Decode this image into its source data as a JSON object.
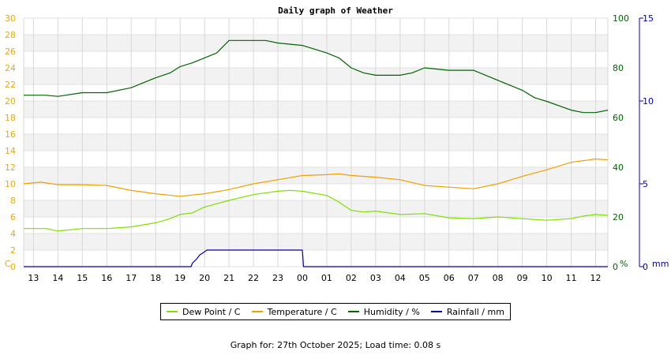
{
  "chart_data": {
    "type": "line",
    "title": "Daily graph of Weather",
    "x_labels": [
      "13",
      "14",
      "15",
      "16",
      "17",
      "18",
      "19",
      "20",
      "21",
      "22",
      "23",
      "00",
      "01",
      "02",
      "03",
      "04",
      "05",
      "06",
      "07",
      "08",
      "09",
      "10",
      "11",
      "12"
    ],
    "x_range_hours": [
      12.6,
      36.5
    ],
    "axes": {
      "left": {
        "unit": "C",
        "min": 0,
        "max": 30,
        "ticks": [
          0,
          2,
          4,
          6,
          8,
          10,
          12,
          14,
          16,
          18,
          20,
          22,
          24,
          26,
          28,
          30
        ],
        "color": "#e6a817"
      },
      "right_humidity": {
        "unit": "%",
        "min": 0,
        "max": 100,
        "ticks": [
          0,
          20,
          40,
          60,
          80,
          100
        ],
        "color": "#006400"
      },
      "right_rain": {
        "unit": "mm",
        "min": 0,
        "max": 15,
        "ticks": [
          0,
          5,
          10,
          15
        ],
        "color": "#0000aa"
      }
    },
    "grid": true,
    "series": [
      {
        "name": "Dew Point / C",
        "axis": "left",
        "color": "#7fe000",
        "points": [
          [
            12.6,
            4.6
          ],
          [
            13.5,
            4.6
          ],
          [
            14.0,
            4.3
          ],
          [
            15,
            4.6
          ],
          [
            16,
            4.6
          ],
          [
            17,
            4.8
          ],
          [
            18,
            5.3
          ],
          [
            18.5,
            5.7
          ],
          [
            19,
            6.3
          ],
          [
            19.5,
            6.5
          ],
          [
            20,
            7.2
          ],
          [
            21,
            8.0
          ],
          [
            22,
            8.7
          ],
          [
            23,
            9.1
          ],
          [
            23.5,
            9.2
          ],
          [
            24,
            9.1
          ],
          [
            25,
            8.6
          ],
          [
            25.5,
            7.8
          ],
          [
            26,
            6.8
          ],
          [
            26.5,
            6.6
          ],
          [
            27,
            6.7
          ],
          [
            28,
            6.3
          ],
          [
            29,
            6.4
          ],
          [
            30,
            5.9
          ],
          [
            31,
            5.8
          ],
          [
            32,
            6.0
          ],
          [
            33,
            5.8
          ],
          [
            34,
            5.6
          ],
          [
            35,
            5.8
          ],
          [
            35.5,
            6.1
          ],
          [
            36,
            6.3
          ],
          [
            36.5,
            6.2
          ]
        ]
      },
      {
        "name": "Temperature / C",
        "axis": "left",
        "color": "#f0a000",
        "points": [
          [
            12.6,
            10.0
          ],
          [
            13.3,
            10.2
          ],
          [
            14,
            9.9
          ],
          [
            15,
            9.9
          ],
          [
            16,
            9.8
          ],
          [
            17,
            9.2
          ],
          [
            18,
            8.8
          ],
          [
            19,
            8.5
          ],
          [
            20,
            8.8
          ],
          [
            21,
            9.3
          ],
          [
            22,
            10.0
          ],
          [
            23,
            10.5
          ],
          [
            24,
            11.0
          ],
          [
            25,
            11.1
          ],
          [
            25.5,
            11.2
          ],
          [
            26,
            11.0
          ],
          [
            27,
            10.8
          ],
          [
            28,
            10.5
          ],
          [
            29,
            9.8
          ],
          [
            30,
            9.6
          ],
          [
            31,
            9.4
          ],
          [
            32,
            10.0
          ],
          [
            33,
            10.9
          ],
          [
            34,
            11.7
          ],
          [
            35,
            12.6
          ],
          [
            36,
            13.0
          ],
          [
            36.5,
            12.9
          ]
        ]
      },
      {
        "name": "Humidity / %",
        "axis": "right_humidity",
        "color": "#006400",
        "points": [
          [
            12.6,
            69
          ],
          [
            13.5,
            69
          ],
          [
            14,
            68.5
          ],
          [
            15,
            70
          ],
          [
            16,
            70
          ],
          [
            17,
            72
          ],
          [
            18,
            76
          ],
          [
            18.6,
            78
          ],
          [
            19,
            80.5
          ],
          [
            19.5,
            82
          ],
          [
            20,
            84
          ],
          [
            20.5,
            86
          ],
          [
            21,
            91
          ],
          [
            22,
            91
          ],
          [
            22.5,
            91
          ],
          [
            23,
            90
          ],
          [
            24,
            89
          ],
          [
            25,
            86
          ],
          [
            25.5,
            84
          ],
          [
            26,
            80
          ],
          [
            26.5,
            78
          ],
          [
            27,
            77
          ],
          [
            28,
            77
          ],
          [
            28.5,
            78
          ],
          [
            29,
            80
          ],
          [
            30,
            79
          ],
          [
            31,
            79
          ],
          [
            31.5,
            77
          ],
          [
            32,
            75
          ],
          [
            33,
            71
          ],
          [
            33.5,
            68
          ],
          [
            34,
            66.5
          ],
          [
            35,
            63
          ],
          [
            35.5,
            62
          ],
          [
            36,
            62
          ],
          [
            36.5,
            63
          ]
        ]
      },
      {
        "name": "Rainfall / mm",
        "axis": "right_rain",
        "color": "#0000aa",
        "points": [
          [
            12.6,
            0
          ],
          [
            19.45,
            0
          ],
          [
            19.5,
            0.2
          ],
          [
            19.7,
            0.5
          ],
          [
            19.8,
            0.7
          ],
          [
            19.9,
            0.8
          ],
          [
            20.1,
            1.0
          ],
          [
            20.2,
            1.0
          ],
          [
            24.0,
            1.0
          ],
          [
            24.05,
            0
          ],
          [
            36.5,
            0
          ]
        ]
      }
    ],
    "legend_position": "bottom-center"
  },
  "legend": {
    "items": [
      {
        "label": "Dew Point / C",
        "color": "#7fe000"
      },
      {
        "label": "Temperature / C",
        "color": "#f0a000"
      },
      {
        "label": "Humidity / %",
        "color": "#006400"
      },
      {
        "label": "Rainfall / mm",
        "color": "#0000aa"
      }
    ]
  },
  "footer": {
    "text": "Graph for: 27th October 2025; Load time: 0.08 s"
  }
}
